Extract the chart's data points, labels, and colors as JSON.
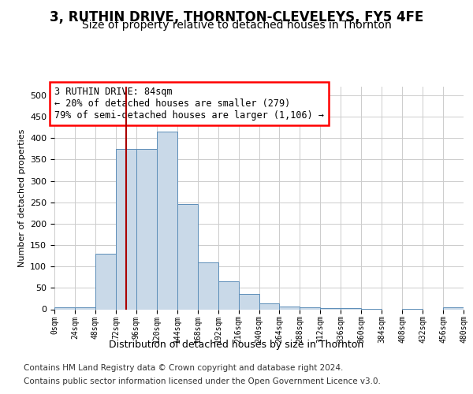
{
  "title": "3, RUTHIN DRIVE, THORNTON-CLEVELEYS, FY5 4FE",
  "subtitle": "Size of property relative to detached houses in Thornton",
  "xlabel": "Distribution of detached houses by size in Thornton",
  "ylabel": "Number of detached properties",
  "footer1": "Contains HM Land Registry data © Crown copyright and database right 2024.",
  "footer2": "Contains public sector information licensed under the Open Government Licence v3.0.",
  "annotation_line1": "3 RUTHIN DRIVE: 84sqm",
  "annotation_line2": "← 20% of detached houses are smaller (279)",
  "annotation_line3": "79% of semi-detached houses are larger (1,106) →",
  "bar_edges": [
    0,
    24,
    48,
    72,
    96,
    120,
    144,
    168,
    192,
    216,
    240,
    264,
    288,
    312,
    336,
    360,
    384,
    408,
    432,
    456,
    480
  ],
  "bar_heights": [
    4,
    5,
    130,
    375,
    375,
    415,
    245,
    110,
    65,
    35,
    14,
    7,
    5,
    3,
    2,
    1,
    0,
    1,
    0,
    5
  ],
  "bar_color": "#c9d9e8",
  "bar_edge_color": "#5b8db8",
  "vline_x": 84,
  "vline_color": "#aa0000",
  "ylim": [
    0,
    520
  ],
  "yticks": [
    0,
    50,
    100,
    150,
    200,
    250,
    300,
    350,
    400,
    450,
    500
  ],
  "grid_color": "#cccccc",
  "background_color": "#ffffff",
  "title_fontsize": 12,
  "subtitle_fontsize": 10,
  "annotation_fontsize": 8.5,
  "ylabel_fontsize": 8,
  "footer_fontsize": 7.5,
  "xlabel_fontsize": 9
}
